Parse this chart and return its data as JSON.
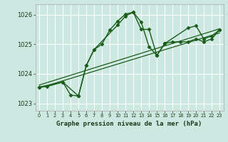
{
  "xlabel": "Graphe pression niveau de la mer (hPa)",
  "bg_color": "#cce8e0",
  "grid_color": "#ffffff",
  "line_color": "#1a5c1a",
  "ylim": [
    1022.75,
    1026.35
  ],
  "xlim": [
    -0.5,
    23.5
  ],
  "yticks": [
    1023,
    1024,
    1025,
    1026
  ],
  "xticks": [
    0,
    1,
    2,
    3,
    4,
    5,
    6,
    7,
    8,
    9,
    10,
    11,
    12,
    13,
    14,
    15,
    16,
    17,
    18,
    19,
    20,
    21,
    22,
    23
  ],
  "series": [
    {
      "x": [
        0,
        1,
        3,
        4,
        5,
        6,
        7,
        8,
        9,
        10,
        11,
        12,
        13,
        14,
        15,
        16,
        17,
        18,
        19,
        20,
        21,
        22,
        23
      ],
      "y": [
        1023.55,
        1023.57,
        1023.72,
        1023.28,
        1023.25,
        1024.28,
        1024.82,
        1025.0,
        1025.48,
        1025.78,
        1026.02,
        1026.08,
        1025.75,
        1024.92,
        1024.62,
        1025.02,
        1025.08,
        1025.08,
        1025.08,
        1025.18,
        1025.08,
        1025.18,
        1025.48
      ],
      "marker": "D",
      "markersize": 2.5,
      "linewidth": 1.0
    },
    {
      "x": [
        0,
        3,
        5,
        6,
        7,
        10,
        11,
        12,
        13,
        14,
        15,
        16,
        19,
        20,
        21,
        22,
        23
      ],
      "y": [
        1023.55,
        1023.72,
        1023.25,
        1024.28,
        1024.82,
        1025.65,
        1025.95,
        1026.08,
        1025.5,
        1025.5,
        1024.62,
        1025.02,
        1025.55,
        1025.62,
        1025.18,
        1025.28,
        1025.48
      ],
      "marker": "D",
      "markersize": 2.5,
      "linewidth": 1.0
    },
    {
      "x": [
        0,
        23
      ],
      "y": [
        1023.52,
        1025.38
      ],
      "marker": null,
      "markersize": 0,
      "linewidth": 0.9
    },
    {
      "x": [
        0,
        23
      ],
      "y": [
        1023.62,
        1025.52
      ],
      "marker": null,
      "markersize": 0,
      "linewidth": 0.9
    }
  ]
}
